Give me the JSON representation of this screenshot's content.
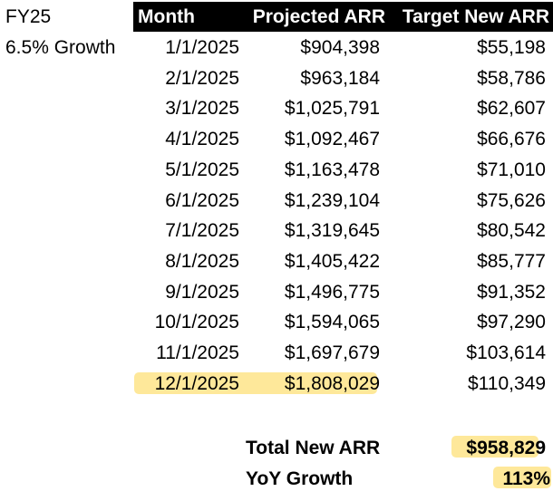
{
  "side": {
    "year": "FY25",
    "growth": "6.5% Growth"
  },
  "headers": {
    "month": "Month",
    "projected": "Projected ARR",
    "target": "Target New ARR"
  },
  "rows": [
    {
      "month": "1/1/2025",
      "projected": "$904,398",
      "target": "$55,198"
    },
    {
      "month": "2/1/2025",
      "projected": "$963,184",
      "target": "$58,786"
    },
    {
      "month": "3/1/2025",
      "projected": "$1,025,791",
      "target": "$62,607"
    },
    {
      "month": "4/1/2025",
      "projected": "$1,092,467",
      "target": "$66,676"
    },
    {
      "month": "5/1/2025",
      "projected": "$1,163,478",
      "target": "$71,010"
    },
    {
      "month": "6/1/2025",
      "projected": "$1,239,104",
      "target": "$75,626"
    },
    {
      "month": "7/1/2025",
      "projected": "$1,319,645",
      "target": "$80,542"
    },
    {
      "month": "8/1/2025",
      "projected": "$1,405,422",
      "target": "$85,777"
    },
    {
      "month": "9/1/2025",
      "projected": "$1,496,775",
      "target": "$91,352"
    },
    {
      "month": "10/1/2025",
      "projected": "$1,594,065",
      "target": "$97,290"
    },
    {
      "month": "11/1/2025",
      "projected": "$1,697,679",
      "target": "$103,614"
    },
    {
      "month": "12/1/2025",
      "projected": "$1,808,029",
      "target": "$110,349"
    }
  ],
  "summary": {
    "total_label": "Total New ARR",
    "total_value": "$958,829",
    "yoy_label": "YoY Growth",
    "yoy_value": "113%"
  },
  "colors": {
    "header_bg": "#000000",
    "header_text": "#ffffff",
    "highlight": "#fde078"
  }
}
